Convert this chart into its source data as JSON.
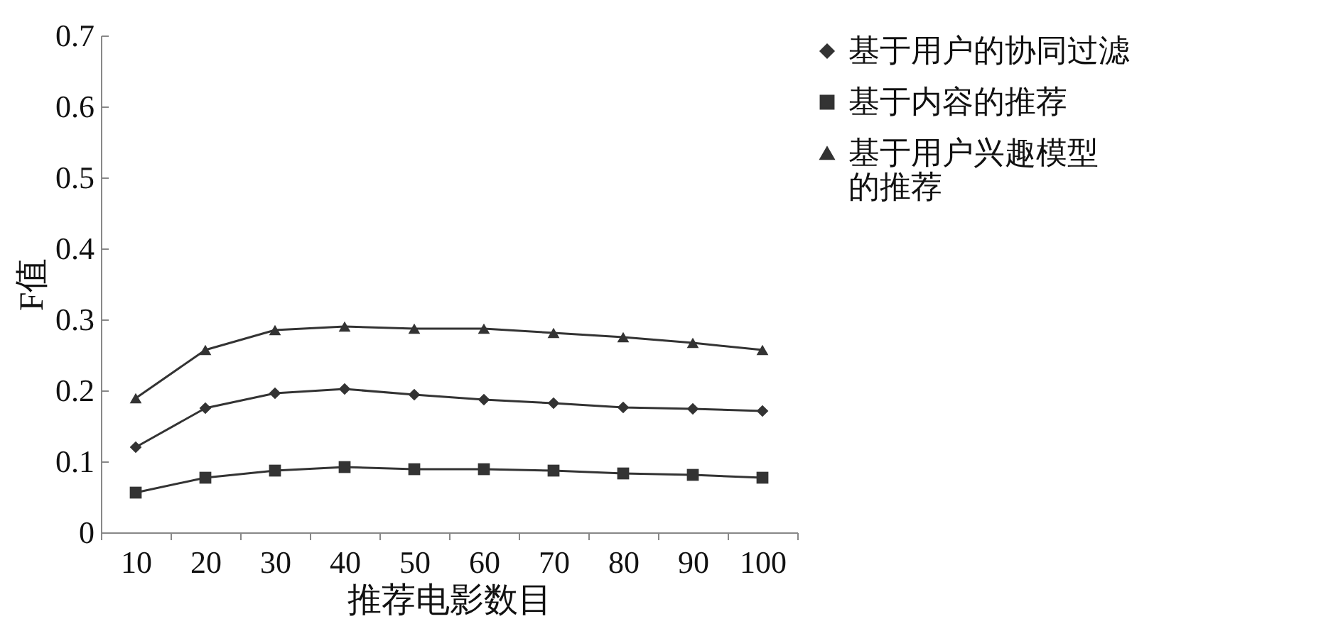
{
  "chart_data": {
    "type": "line",
    "xlabel": "推荐电影数目",
    "ylabel": "F值",
    "categories": [
      "10",
      "20",
      "30",
      "40",
      "50",
      "60",
      "70",
      "80",
      "90",
      "100"
    ],
    "series": [
      {
        "name": "基于用户的协同过滤",
        "color": "#333333",
        "marker": "diamond",
        "values": [
          0.12,
          0.175,
          0.196,
          0.202,
          0.194,
          0.187,
          0.182,
          0.176,
          0.174,
          0.171
        ]
      },
      {
        "name": "基于内容的推荐",
        "color": "#333333",
        "marker": "square",
        "values": [
          0.056,
          0.077,
          0.087,
          0.092,
          0.089,
          0.089,
          0.087,
          0.083,
          0.081,
          0.077
        ]
      },
      {
        "name": "基于用户兴趣模型的推荐",
        "color": "#333333",
        "marker": "triangle",
        "values": [
          0.189,
          0.257,
          0.285,
          0.29,
          0.287,
          0.287,
          0.281,
          0.275,
          0.267,
          0.257
        ]
      }
    ],
    "ylim": [
      0,
      0.7
    ],
    "yticks": [
      0,
      0.1,
      0.2,
      0.3,
      0.4,
      0.5,
      0.6,
      0.7
    ],
    "grid": false,
    "legend": "right",
    "line_style": "solid"
  }
}
